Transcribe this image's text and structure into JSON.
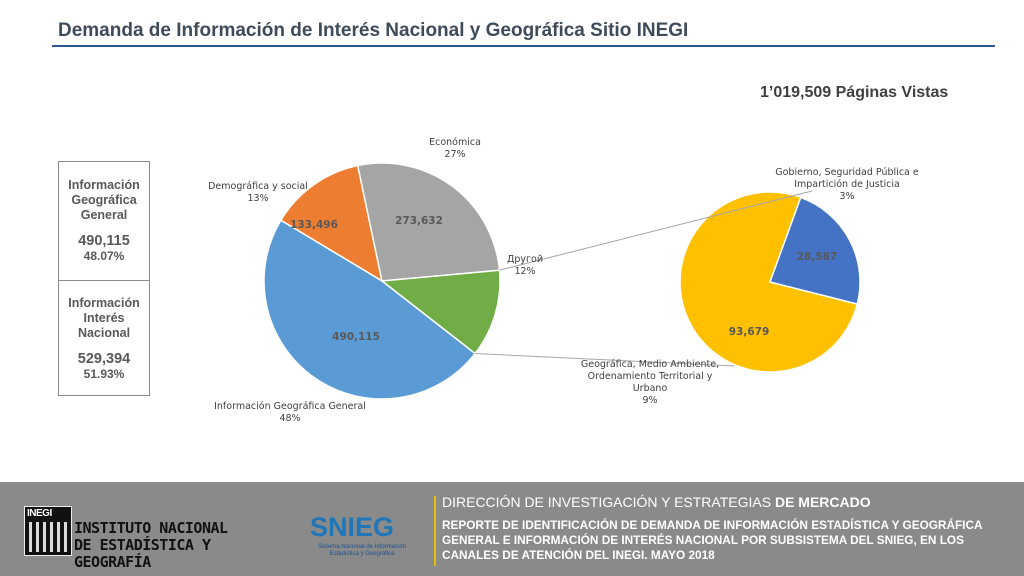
{
  "title": "Demanda de Información de Interés Nacional y Geográfica Sitio INEGI",
  "total_views": "1’019,509 Páginas Vistas",
  "side_boxes": {
    "geo": {
      "label_lines": [
        "Información",
        "Geográfica",
        "General"
      ],
      "value": "490,115",
      "pct": "48.07%"
    },
    "nac": {
      "label_lines": [
        "Información",
        "Interés",
        "Nacional"
      ],
      "value": "529,394",
      "pct": "51.93%"
    }
  },
  "chart_data": [
    {
      "type": "pie",
      "slices": [
        {
          "name": "Información Geográfica General",
          "value": 490115,
          "value_label": "490,115",
          "pct_label": "48%",
          "color": "#5b9bd5"
        },
        {
          "name": "Demográfica y social",
          "value": 133496,
          "value_label": "133,496",
          "pct_label": "13%",
          "color": "#ed7d31"
        },
        {
          "name": "Económica",
          "value": 273632,
          "value_label": "273,632",
          "pct_label": "27%",
          "color": "#a5a5a5"
        },
        {
          "name": "Другой",
          "value": 122266,
          "value_label": "",
          "pct_label": "12%",
          "color": "#70ad47"
        }
      ]
    },
    {
      "type": "pie",
      "slices": [
        {
          "name": "Geográfica, Medio Ambiente, Ordenamiento Territorial y Urbano",
          "value": 93679,
          "value_label": "93,679",
          "pct_label": "9%",
          "color": "#ffc000"
        },
        {
          "name": "Gobierno, Seguridad Pública e Impartición de Justicia",
          "value": 28587,
          "value_label": "28,587",
          "pct_label": "3%",
          "color": "#4472c4"
        }
      ]
    }
  ],
  "footer": {
    "inegi_tag": "INEGI",
    "inegi_name_lines": [
      "INSTITUTO NACIONAL",
      "DE ESTADÍSTICA Y GEOGRAFÍA"
    ],
    "snieg": "SNIEG",
    "snieg_sub": "Sistema Nacional de Información Estadística y Geográfica",
    "dir_prefix": "DIRECCIÓN DE INVESTIGACIÓN Y ESTRATEGIAS",
    "dir_suffix": "DE MERCADO",
    "report": "REPORTE DE IDENTIFICACIÓN DE DEMANDA DE INFORMACIÓN ESTADÍSTICA Y GEOGRÁFICA GENERAL E INFORMACIÓN DE INTERÉS NACIONAL POR SUBSISTEMA DEL SNIEG, EN LOS CANALES DE ATENCIÓN DEL INEGI. MAYO 2018"
  }
}
